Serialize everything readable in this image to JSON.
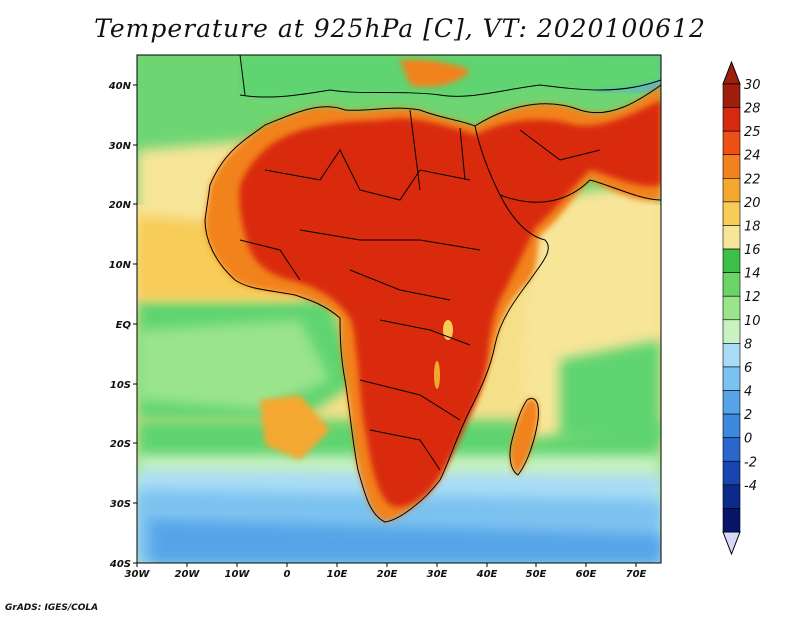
{
  "title": "Temperature at 925hPa [C], VT: 2020100612",
  "footer": "GrADS: IGES/COLA",
  "colors": {
    "ocean_cool": "#5aa6ec",
    "ocean_mid": "#5fd470",
    "ocean_warm": "#f5e08a",
    "land_hot": "#d92a10",
    "land_warm": "#f08a28",
    "coastline": "#000000"
  },
  "map": {
    "lon_range": [
      -30,
      75
    ],
    "lat_range": [
      -40,
      45
    ],
    "lon_labels": [
      "30W",
      "20W",
      "10W",
      "0",
      "10E",
      "20E",
      "30E",
      "40E",
      "50E",
      "60E",
      "70E"
    ],
    "lat_labels": [
      "40N",
      "30N",
      "20N",
      "10N",
      "EQ",
      "10S",
      "20S",
      "30S",
      "40S"
    ]
  },
  "colorbar": {
    "labels": [
      "30",
      "28",
      "25",
      "24",
      "22",
      "20",
      "18",
      "16",
      "14",
      "12",
      "10",
      "8",
      "6",
      "4",
      "2",
      "0",
      "-2",
      "-4"
    ],
    "colors": [
      "#a01e0e",
      "#d62a10",
      "#ec5014",
      "#f2821e",
      "#f5a830",
      "#f7cc58",
      "#f7e598",
      "#3cc04a",
      "#6cd466",
      "#9ae48c",
      "#c8f2c0",
      "#a8dcf6",
      "#7cc2f0",
      "#56a4e8",
      "#3c88de",
      "#2a66cc",
      "#1a44b0",
      "#0c2a8a",
      "#06146a"
    ],
    "top_arrow_color": "#a01e0e",
    "bottom_arrow_color": "#d8d8f6"
  }
}
